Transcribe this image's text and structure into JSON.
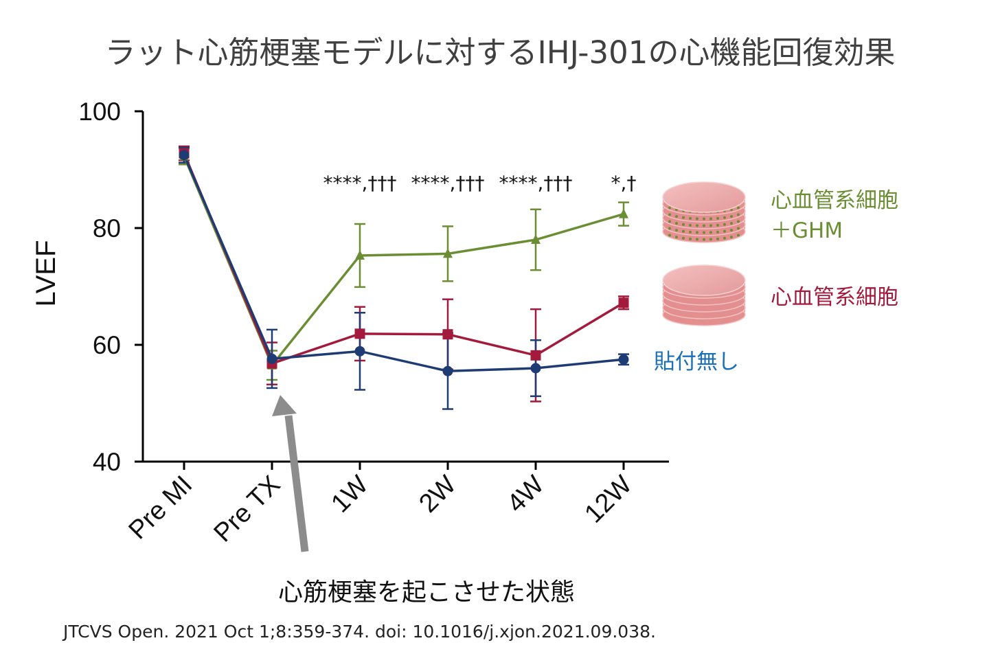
{
  "title": "ラット心筋梗塞モデルに対するIHJ-301の心機能回復効果",
  "colors": {
    "green": "#6b8e34",
    "red": "#a31a3c",
    "navy": "#1f3b73",
    "blue_label": "#1a6fb5",
    "arrow": "#8c8c8c",
    "disc": "#f0a8a8"
  },
  "chart_data": {
    "type": "line",
    "ylabel": "LVEF",
    "xlabel": "",
    "ylim": [
      40,
      100
    ],
    "yticks": [
      "40",
      "60",
      "80",
      "100"
    ],
    "categories": [
      "Pre MI",
      "Pre TX",
      "1W",
      "2W",
      "4W",
      "12W"
    ],
    "significance": [
      "",
      "",
      "****,†††",
      "****,†††",
      "****,†††",
      "*,†"
    ],
    "series": [
      {
        "name": "心血管系細胞\n＋GHM",
        "color": "#6b8e34",
        "marker": "triangle",
        "values": [
          92.3,
          56.5,
          75.3,
          75.6,
          78.0,
          82.4
        ],
        "err": [
          1.4,
          2.5,
          5.4,
          4.7,
          5.2,
          2.0
        ]
      },
      {
        "name": "心血管系細胞",
        "color": "#a31a3c",
        "marker": "square",
        "values": [
          92.8,
          56.8,
          61.9,
          61.8,
          58.2,
          67.2
        ],
        "err": [
          1.2,
          3.6,
          4.6,
          6.0,
          7.9,
          1.1
        ]
      },
      {
        "name": "貼付無し",
        "color": "#1f3b73",
        "marker": "circle",
        "values": [
          92.5,
          57.6,
          58.9,
          55.5,
          56.0,
          57.5
        ],
        "err": [
          1.3,
          5.0,
          6.6,
          6.5,
          4.8,
          0.9
        ]
      }
    ]
  },
  "legend": {
    "green_line1": "心血管系細胞",
    "green_line2": "＋GHM",
    "red": "心血管系細胞",
    "navy": "貼付無し"
  },
  "annotation": "心筋梗塞を起こさせた状態",
  "citation": "JTCVS Open. 2021 Oct 1;8:359-374.  doi: 10.1016/j.xjon.2021.09.038."
}
